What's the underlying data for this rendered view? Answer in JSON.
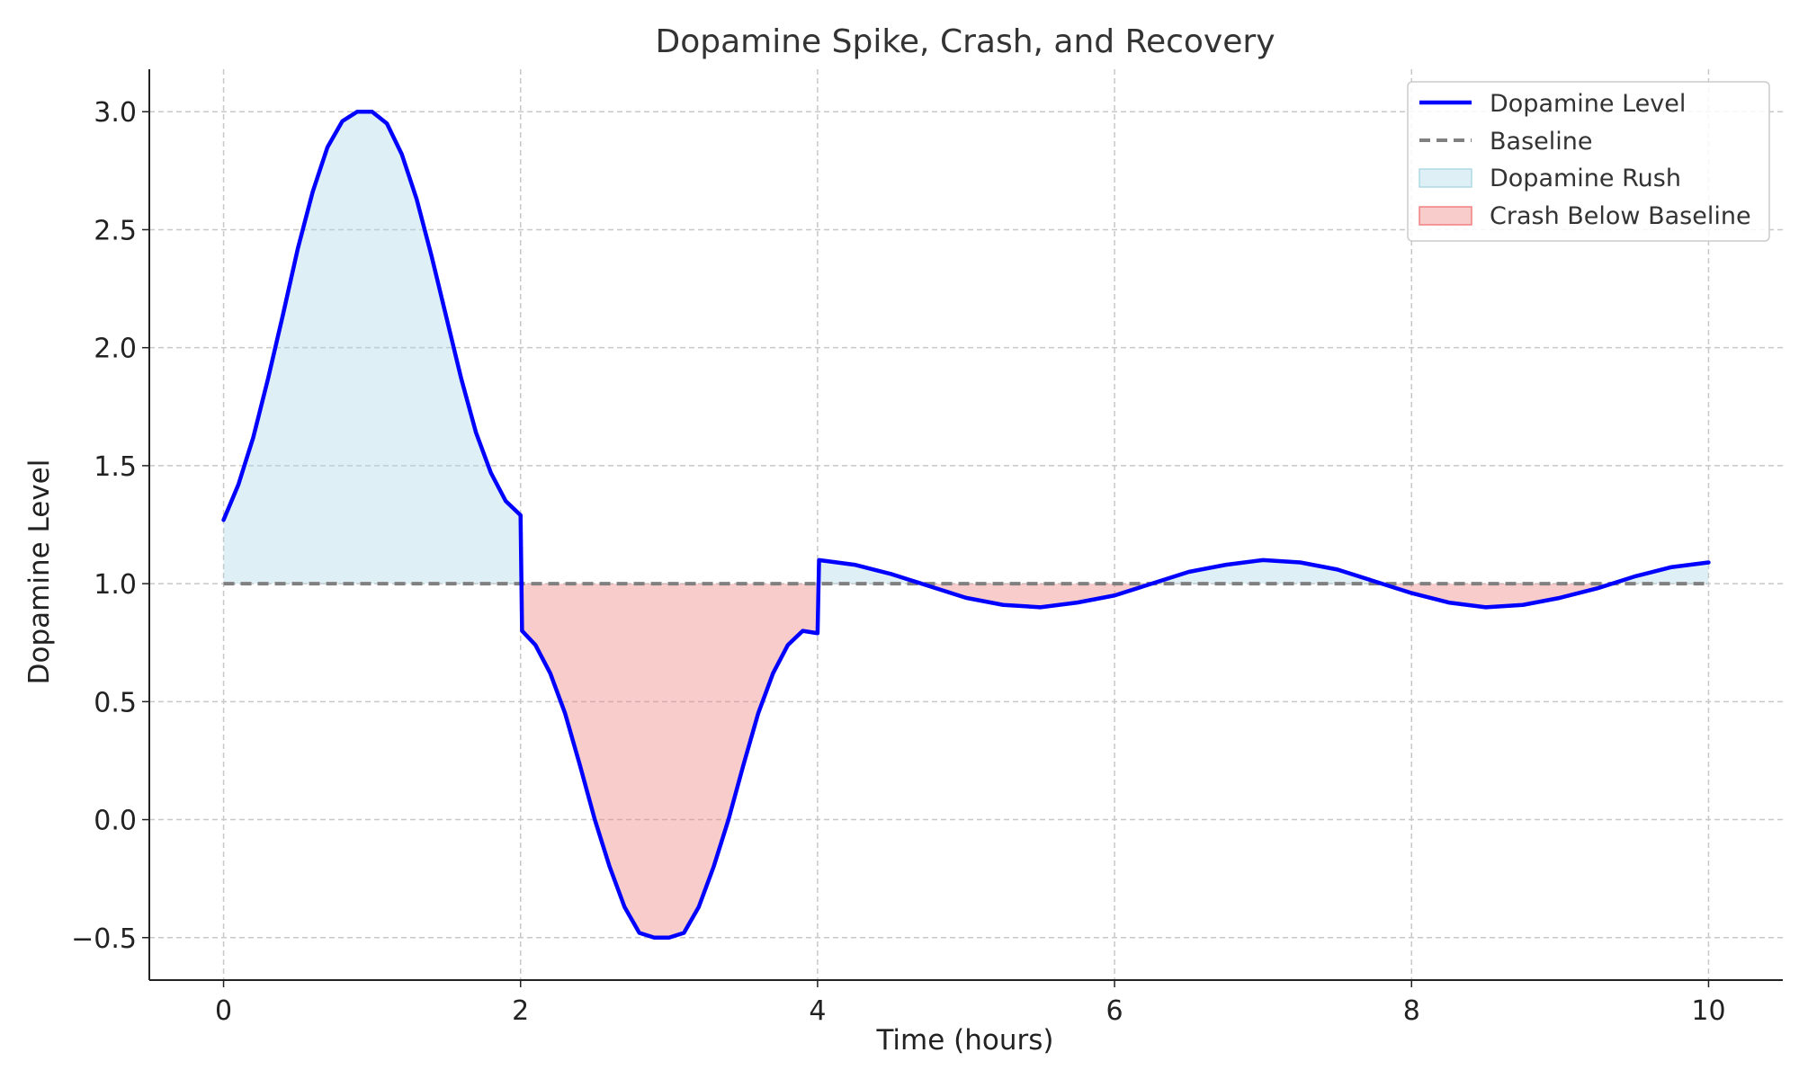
{
  "chart_data": {
    "type": "area",
    "title": "Dopamine Spike, Crash, and Recovery",
    "xlabel": "Time (hours)",
    "ylabel": "Dopamine Level",
    "xlim": [
      -0.5,
      10.5
    ],
    "ylim": [
      -0.68,
      3.18
    ],
    "xticks": [
      0,
      2,
      4,
      6,
      8,
      10
    ],
    "xtick_labels": [
      "0",
      "2",
      "4",
      "6",
      "8",
      "10"
    ],
    "yticks": [
      -0.5,
      0.0,
      0.5,
      1.0,
      1.5,
      2.0,
      2.5,
      3.0
    ],
    "ytick_labels": [
      "−0.5",
      "0.0",
      "0.5",
      "1.0",
      "1.5",
      "2.0",
      "2.5",
      "3.0"
    ],
    "grid": true,
    "legend_position": "top-right",
    "baseline": 1.0,
    "series": [
      {
        "name": "Dopamine Level",
        "style": "solid",
        "color": "#0000ff",
        "x": [
          0,
          0.1,
          0.2,
          0.3,
          0.4,
          0.5,
          0.6,
          0.7,
          0.8,
          0.9,
          1.0,
          1.1,
          1.2,
          1.3,
          1.4,
          1.5,
          1.6,
          1.7,
          1.8,
          1.9,
          2.0,
          2.01,
          2.1,
          2.2,
          2.3,
          2.4,
          2.5,
          2.6,
          2.7,
          2.8,
          2.9,
          3.0,
          3.1,
          3.2,
          3.3,
          3.4,
          3.5,
          3.6,
          3.7,
          3.8,
          3.9,
          4.0,
          4.01,
          4.25,
          4.5,
          4.75,
          5.0,
          5.25,
          5.5,
          5.75,
          6.0,
          6.25,
          6.5,
          6.75,
          7.0,
          7.25,
          7.5,
          7.75,
          8.0,
          8.25,
          8.5,
          8.75,
          9.0,
          9.25,
          9.5,
          9.75,
          10.0
        ],
        "y": [
          1.27,
          1.42,
          1.62,
          1.87,
          2.14,
          2.42,
          2.66,
          2.85,
          2.96,
          3.0,
          3.0,
          2.95,
          2.82,
          2.63,
          2.39,
          2.13,
          1.87,
          1.64,
          1.47,
          1.35,
          1.29,
          0.8,
          0.74,
          0.62,
          0.45,
          0.23,
          0.0,
          -0.2,
          -0.37,
          -0.48,
          -0.5,
          -0.5,
          -0.48,
          -0.37,
          -0.2,
          0.0,
          0.23,
          0.45,
          0.62,
          0.74,
          0.8,
          0.79,
          1.1,
          1.08,
          1.04,
          0.99,
          0.94,
          0.91,
          0.9,
          0.92,
          0.95,
          1.0,
          1.05,
          1.08,
          1.1,
          1.09,
          1.06,
          1.01,
          0.96,
          0.92,
          0.9,
          0.91,
          0.94,
          0.98,
          1.03,
          1.07,
          1.09
        ]
      },
      {
        "name": "Baseline",
        "style": "dashed",
        "color": "#808080",
        "x": [
          0,
          10
        ],
        "y": [
          1.0,
          1.0
        ]
      }
    ],
    "fills": [
      {
        "name": "Dopamine Rush",
        "where": "above baseline",
        "color": "#add8e6",
        "alpha": 0.4
      },
      {
        "name": "Crash Below Baseline",
        "where": "below baseline",
        "color": "#f08080",
        "alpha": 0.4
      }
    ]
  }
}
